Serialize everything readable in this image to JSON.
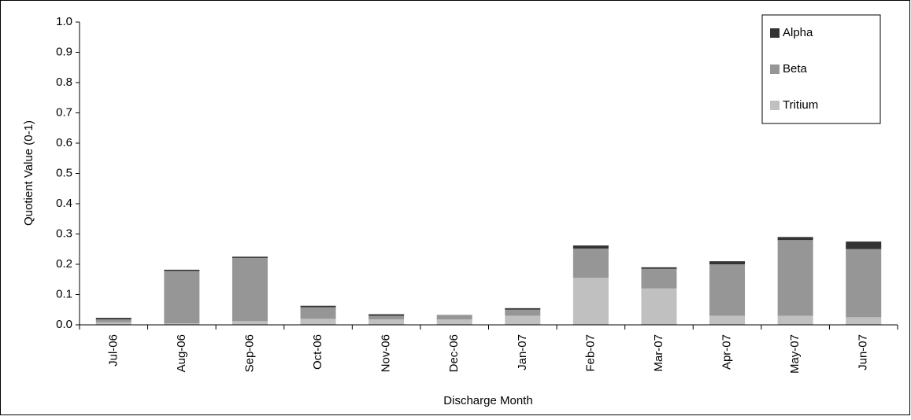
{
  "chart_data": {
    "type": "stacked_bar",
    "x_label": "Discharge Month",
    "y_label": "Quotient Value (0-1)",
    "categories": [
      "Jul-06",
      "Aug-06",
      "Sep-06",
      "Oct-06",
      "Nov-06",
      "Dec-06",
      "Jan-07",
      "Feb-07",
      "Mar-07",
      "Apr-07",
      "May-07",
      "Jun-07"
    ],
    "series": [
      {
        "name": "Tritium",
        "color": "#c0c0c0",
        "values": [
          0.008,
          0.005,
          0.012,
          0.02,
          0.018,
          0.018,
          0.03,
          0.155,
          0.12,
          0.03,
          0.03,
          0.025
        ]
      },
      {
        "name": "Beta",
        "color": "#969696",
        "values": [
          0.01,
          0.173,
          0.209,
          0.038,
          0.012,
          0.015,
          0.02,
          0.097,
          0.065,
          0.17,
          0.25,
          0.225
        ]
      },
      {
        "name": "Alpha",
        "color": "#333333",
        "values": [
          0.005,
          0.004,
          0.004,
          0.005,
          0.005,
          0,
          0.005,
          0.01,
          0.005,
          0.01,
          0.01,
          0.025
        ]
      }
    ],
    "ylim": [
      0,
      1
    ],
    "yticks": [
      {
        "value": 0,
        "label": "0.0"
      },
      0.1,
      0.2,
      0.3,
      0.4,
      0.5,
      0.6,
      0.7,
      0.8,
      0.9,
      {
        "value": 1,
        "label": "1.0"
      }
    ],
    "legend": "top-right"
  }
}
